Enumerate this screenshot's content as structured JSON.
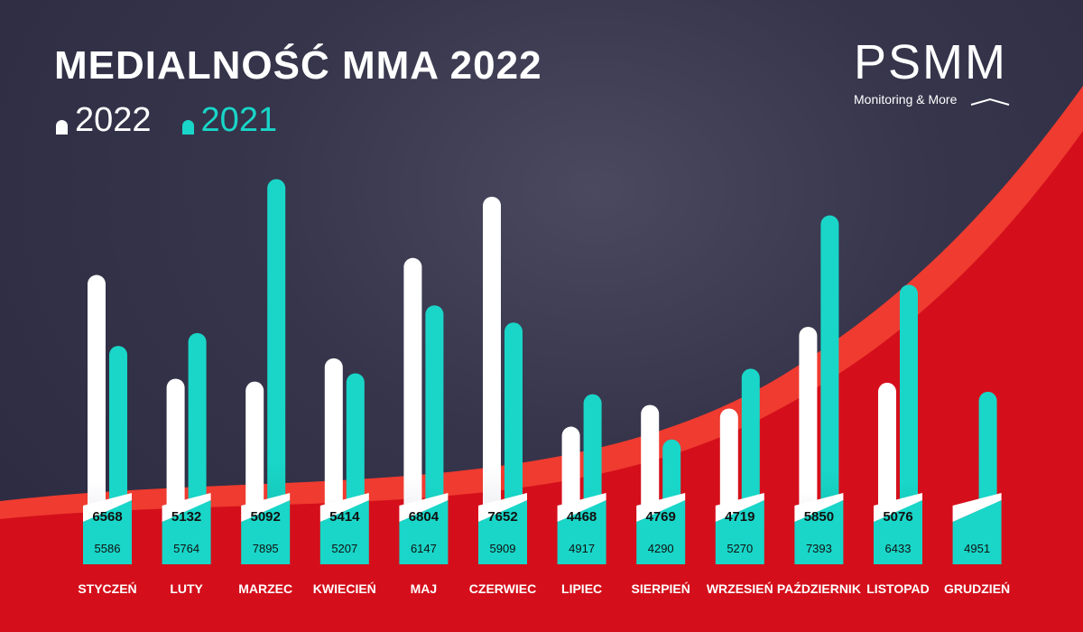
{
  "header": {
    "title": "MEDIALNOŚĆ MMA 2022"
  },
  "legend": [
    {
      "label": "2022",
      "color": "#ffffff"
    },
    {
      "label": "2021",
      "color": "#19d6c8"
    }
  ],
  "logo": {
    "word": "PSMM",
    "tagline": "Monitoring & More"
  },
  "colors": {
    "background": "#2c2b40",
    "wave_red": "#d40f1b",
    "wave_light": "#ef3b30",
    "series_2022": "#ffffff",
    "series_2021": "#19d6c8",
    "label_text": "#111111",
    "month_text": "#ffffff"
  },
  "chart_data": {
    "type": "bar",
    "title": "MEDIALNOŚĆ MMA 2022",
    "categories": [
      "STYCZEŃ",
      "LUTY",
      "MARZEC",
      "KWIECIEŃ",
      "MAJ",
      "CZERWIEC",
      "LIPIEC",
      "SIERPIEŃ",
      "WRZESIEŃ",
      "PAŹDZIERNIK",
      "LISTOPAD",
      "GRUDZIEŃ"
    ],
    "series": [
      {
        "name": "2022",
        "values": [
          6568,
          5132,
          5092,
          5414,
          6804,
          7652,
          4468,
          4769,
          4719,
          5850,
          5076,
          null
        ]
      },
      {
        "name": "2021",
        "values": [
          5586,
          5764,
          7895,
          5207,
          6147,
          5909,
          4917,
          4290,
          5270,
          7393,
          6433,
          4951
        ]
      }
    ],
    "ylim": [
      3000,
      8000
    ],
    "grid": false,
    "legend_position": "top-left"
  }
}
